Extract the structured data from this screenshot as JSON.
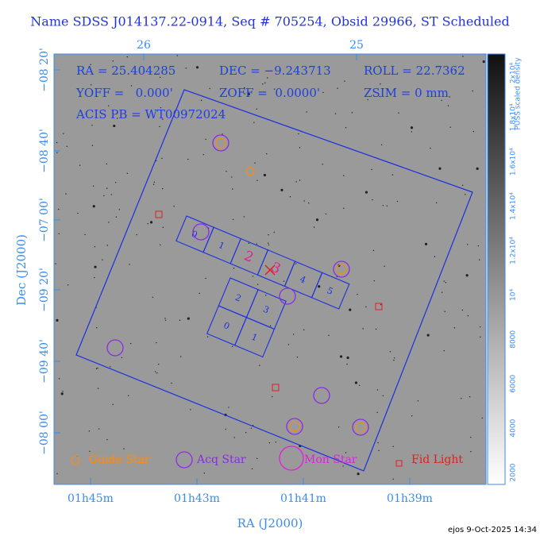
{
  "header": {
    "title": "Name SDSS J014137.22-0914, Seq # 705254, Obsid 29966, ST Scheduled"
  },
  "info": {
    "ra": "RA = 25.404285",
    "dec": "DEC = −9.243713",
    "roll": "ROLL = 22.7362",
    "yoff": "YOFF =   0.000'",
    "zoff": "ZOFF =  0.0000'",
    "zsim": "ZSIM = 0 mm",
    "acis": "ACIS PB = WT00972024"
  },
  "axes": {
    "top_ticks": [
      "26",
      "25"
    ],
    "left_ticks": [
      "−08 20'",
      "−08 40'",
      "−07 00'",
      "−09 20'",
      "−09 40'",
      "−08 00'"
    ],
    "bottom_ticks": [
      "01h45m",
      "01h43m",
      "01h41m",
      "01h39m"
    ],
    "x_title": "RA (J2000)",
    "y_title": "Dec (J2000)"
  },
  "colorbar": {
    "title": "PUSS scaled density",
    "labels": [
      "2000",
      "4000",
      "6000",
      "8000",
      "10⁴",
      "1.2x10⁴",
      "1.4x10⁴",
      "1.6x10⁴",
      "1.8x10⁴",
      "2x10⁴"
    ]
  },
  "chips": {
    "s_array": [
      "0",
      "1",
      "2",
      "3",
      "4",
      "5"
    ],
    "i_array": [
      "2",
      "3",
      "0",
      "1"
    ]
  },
  "legend": [
    "Guide Star",
    "Acq Star",
    "Mon Star",
    "Fid Light"
  ],
  "footer": "ejos  9-Oct-2025 14:34"
}
